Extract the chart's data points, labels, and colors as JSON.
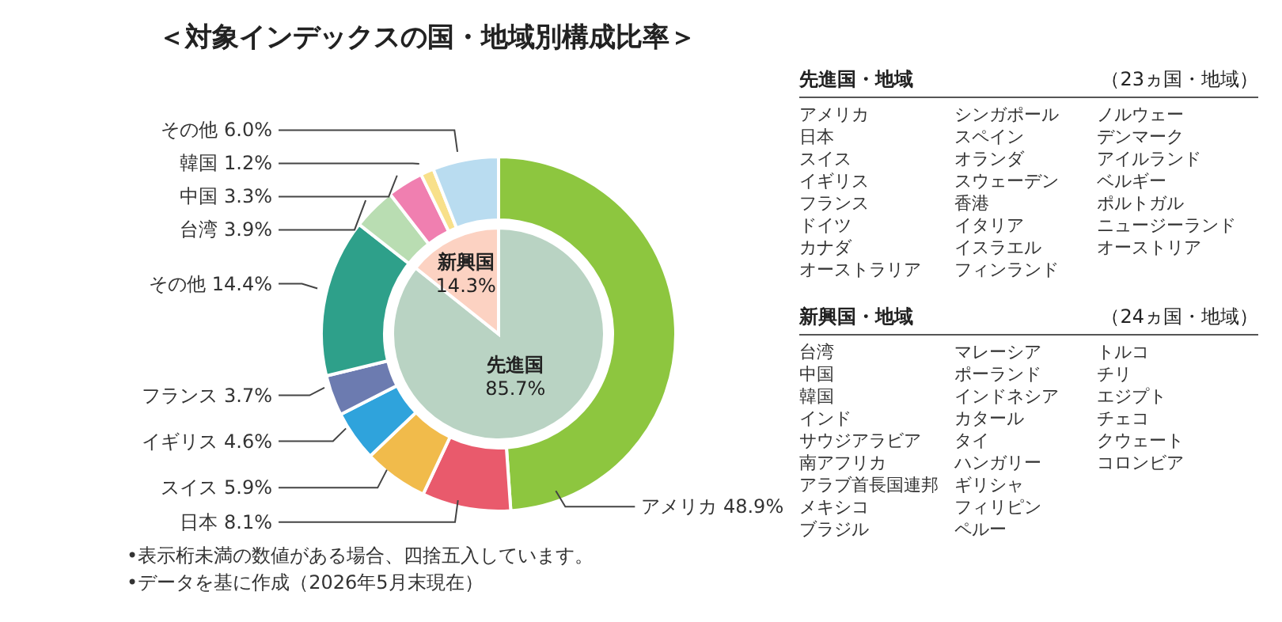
{
  "chart_data": [
    {
      "type": "donut",
      "title": "＜対象インデックスの国・地域別構成比率＞",
      "categories": [
        "アメリカ",
        "日本",
        "スイス",
        "イギリス",
        "フランス",
        "その他",
        "台湾",
        "中国",
        "韓国",
        "その他"
      ],
      "values": [
        48.9,
        8.1,
        5.9,
        4.6,
        3.7,
        14.4,
        3.9,
        3.3,
        1.2,
        6.0
      ],
      "colors": [
        "#8dc63f",
        "#e95a6c",
        "#f1bb4b",
        "#2fa3dc",
        "#6c7bb0",
        "#2ea08a",
        "#b9ddb2",
        "#f07fb0",
        "#f8e08a",
        "#b9dcf0"
      ],
      "value_labels": [
        "48.9%",
        "8.1%",
        "5.9%",
        "4.6%",
        "3.7%",
        "14.4%",
        "3.9%",
        "3.3%",
        "1.2%",
        "6.0%"
      ],
      "annotations": [
        "•表示桁未満の数値がある場合、四捨五入しています。",
        "•データを基に作成（2026年5月末現在）"
      ]
    },
    {
      "type": "pie",
      "categories": [
        "先進国",
        "新興国"
      ],
      "values": [
        85.7,
        14.3
      ],
      "colors": [
        "#b9d3c3",
        "#fcd2c2"
      ],
      "value_labels": [
        "85.7%",
        "14.3%"
      ]
    },
    {
      "type": "other",
      "title": "先進国・地域",
      "subtitle": "（23ヵ国・地域）",
      "annotations": [
        "アメリカ",
        "日本",
        "スイス",
        "イギリス",
        "フランス",
        "ドイツ",
        "カナダ",
        "オーストラリア",
        "シンガポール",
        "スペイン",
        "オランダ",
        "スウェーデン",
        "香港",
        "イタリア",
        "イスラエル",
        "フィンランド",
        "ノルウェー",
        "デンマーク",
        "アイルランド",
        "ベルギー",
        "ポルトガル",
        "ニュージーランド",
        "オーストリア"
      ]
    },
    {
      "type": "other",
      "title": "新興国・地域",
      "subtitle": "（24ヵ国・地域）",
      "annotations": [
        "台湾",
        "中国",
        "韓国",
        "インド",
        "サウジアラビア",
        "南アフリカ",
        "アラブ首長国連邦",
        "メキシコ",
        "ブラジル",
        "マレーシア",
        "ポーランド",
        "インドネシア",
        "カタール",
        "タイ",
        "ハンガリー",
        "ギリシャ",
        "フィリピン",
        "ペルー",
        "トルコ",
        "チリ",
        "エジプト",
        "チェコ",
        "クウェート",
        "コロンビア"
      ]
    }
  ]
}
